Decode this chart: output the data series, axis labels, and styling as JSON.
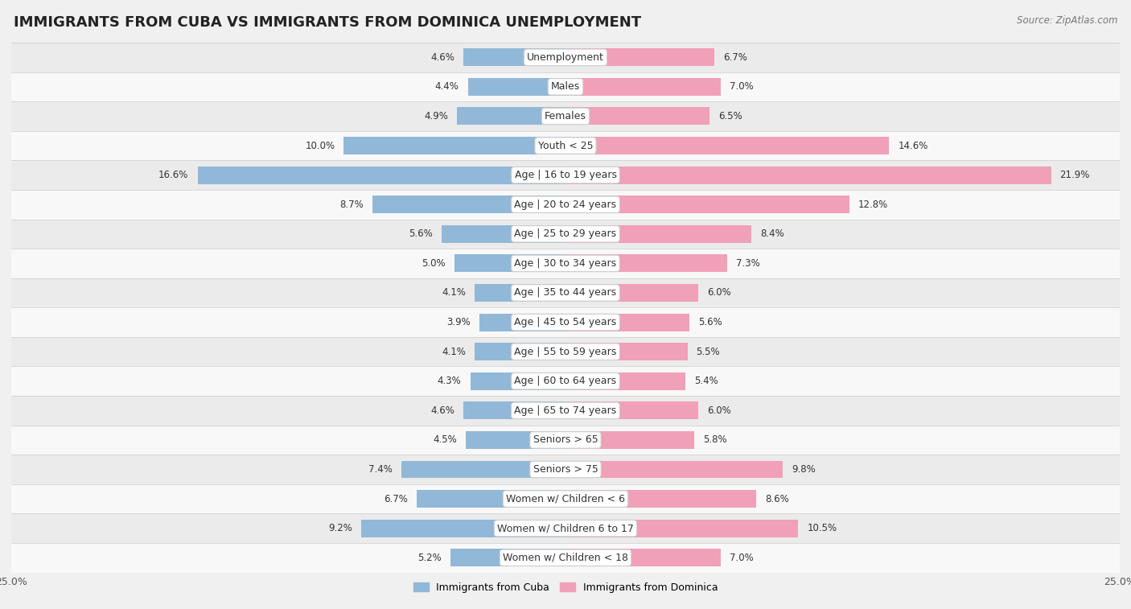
{
  "title": "IMMIGRANTS FROM CUBA VS IMMIGRANTS FROM DOMINICA UNEMPLOYMENT",
  "source": "Source: ZipAtlas.com",
  "categories": [
    "Unemployment",
    "Males",
    "Females",
    "Youth < 25",
    "Age | 16 to 19 years",
    "Age | 20 to 24 years",
    "Age | 25 to 29 years",
    "Age | 30 to 34 years",
    "Age | 35 to 44 years",
    "Age | 45 to 54 years",
    "Age | 55 to 59 years",
    "Age | 60 to 64 years",
    "Age | 65 to 74 years",
    "Seniors > 65",
    "Seniors > 75",
    "Women w/ Children < 6",
    "Women w/ Children 6 to 17",
    "Women w/ Children < 18"
  ],
  "cuba_values": [
    4.6,
    4.4,
    4.9,
    10.0,
    16.6,
    8.7,
    5.6,
    5.0,
    4.1,
    3.9,
    4.1,
    4.3,
    4.6,
    4.5,
    7.4,
    6.7,
    9.2,
    5.2
  ],
  "dominica_values": [
    6.7,
    7.0,
    6.5,
    14.6,
    21.9,
    12.8,
    8.4,
    7.3,
    6.0,
    5.6,
    5.5,
    5.4,
    6.0,
    5.8,
    9.8,
    8.6,
    10.5,
    7.0
  ],
  "cuba_color": "#92b8d8",
  "dominica_color": "#f0a0b8",
  "bar_height": 0.6,
  "background_color": "#f0f0f0",
  "row_bg_even": "#ebebeb",
  "row_bg_odd": "#f8f8f8",
  "title_fontsize": 13,
  "label_fontsize": 9,
  "value_fontsize": 8.5,
  "legend_fontsize": 9
}
